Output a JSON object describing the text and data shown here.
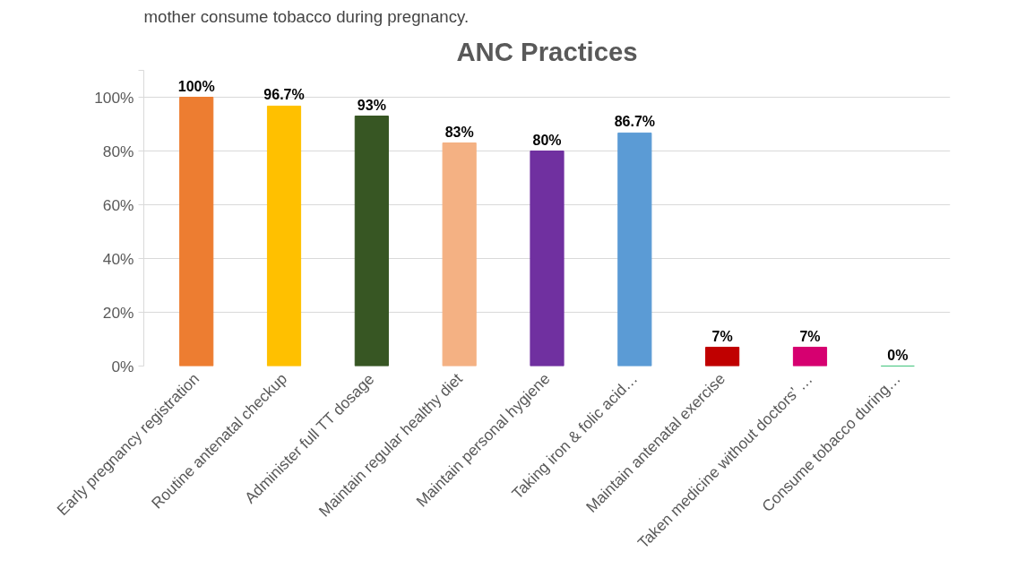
{
  "chart_data": {
    "type": "bar",
    "title": "ANC Practices",
    "annotations": [
      "mother consume tobacco during pregnancy."
    ],
    "categories": [
      "Early pregnancy registration",
      "Routine antenatal checkup",
      "Administer full TT dosage",
      "Maintain regular healthy diet",
      "Maintain personal hygiene",
      "Taking iron & folic acid…",
      "Maintain antenatal exercise",
      "Taken medicine without doctors’ …",
      "Consume tobacco during…"
    ],
    "values": [
      100,
      96.7,
      93,
      83,
      80,
      86.7,
      7,
      7,
      0
    ],
    "value_labels": [
      "100%",
      "96.7%",
      "93%",
      "83%",
      "80%",
      "86.7%",
      "7%",
      "7%",
      "0%"
    ],
    "colors": [
      "#ed7d31",
      "#ffc000",
      "#375623",
      "#f4b183",
      "#7030a0",
      "#5b9bd5",
      "#c00000",
      "#d60070",
      "#00b050"
    ],
    "ylim": [
      0,
      110
    ],
    "yticks": [
      {
        "value": 0,
        "label": "0%"
      },
      {
        "value": 20,
        "label": "20%"
      },
      {
        "value": 40,
        "label": "40%"
      },
      {
        "value": 60,
        "label": "60%"
      },
      {
        "value": 80,
        "label": "80%"
      },
      {
        "value": 100,
        "label": "100%"
      },
      {
        "value": 110,
        "label": null
      }
    ],
    "grid": "y"
  }
}
